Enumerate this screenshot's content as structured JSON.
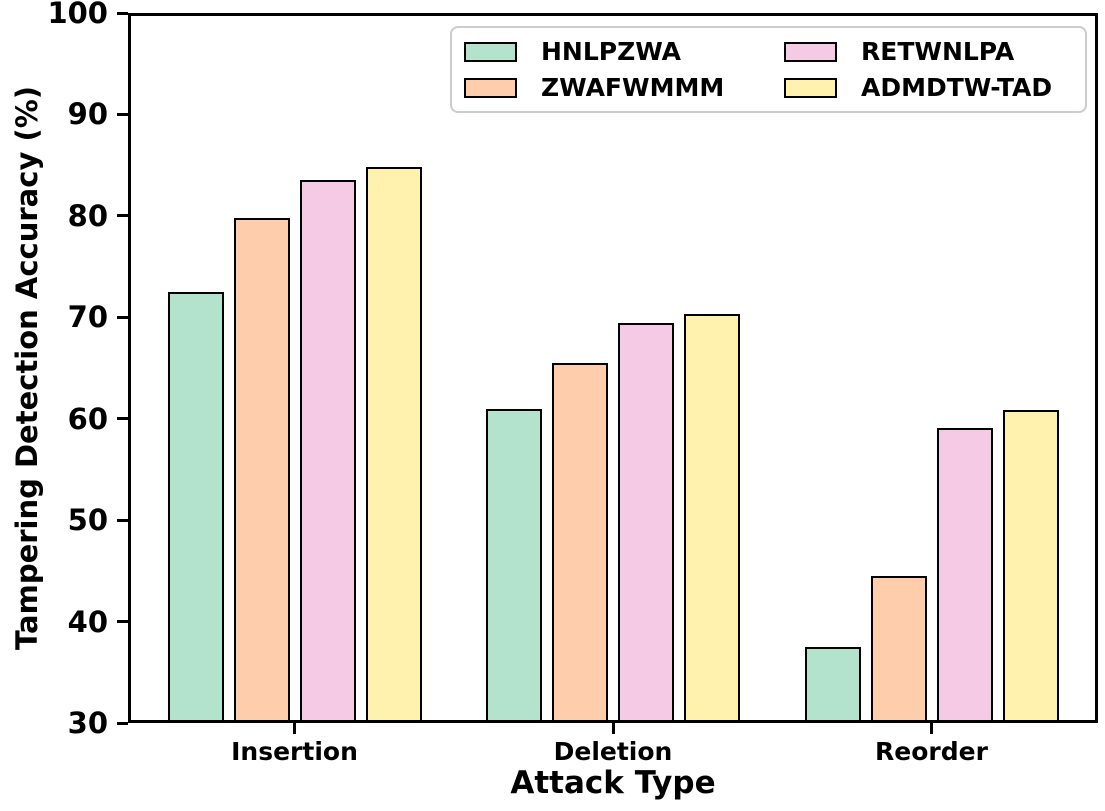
{
  "figure": {
    "background_color": "#ffffff",
    "text_color": "#000000",
    "axis_color": "#000000"
  },
  "chart_data": {
    "type": "bar",
    "title": "",
    "xlabel": "Attack Type",
    "ylabel": "Tampering Detection Accuracy (%)",
    "categories": [
      "Insertion",
      "Deletion",
      "Reorder"
    ],
    "series": [
      {
        "name": "HNLPZWA",
        "color": "#b3e2cd",
        "values": [
          72.5,
          61.0,
          37.5
        ]
      },
      {
        "name": "ZWAFWMMM",
        "color": "#fdcdac",
        "values": [
          79.8,
          65.5,
          44.5
        ]
      },
      {
        "name": "RETWNLPA",
        "color": "#f4cae4",
        "values": [
          83.5,
          69.4,
          59.1
        ]
      },
      {
        "name": "ADMDTW-TAD",
        "color": "#fff2ae",
        "values": [
          84.8,
          70.3,
          60.9
        ]
      }
    ],
    "ylim": [
      30,
      100
    ],
    "yticks": [
      30,
      40,
      50,
      60,
      70,
      80,
      90,
      100
    ],
    "grid": false,
    "bar_edge_color": "#000000",
    "legend": {
      "position": "upper-right-inside",
      "columns": 2,
      "border_color": "#cccccc"
    }
  }
}
